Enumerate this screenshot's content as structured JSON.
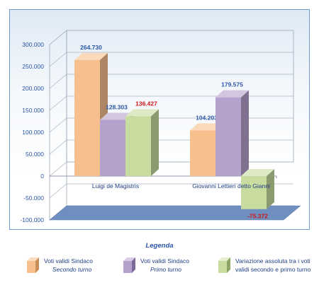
{
  "chart_data": {
    "type": "bar",
    "title": "",
    "xlabel": "",
    "ylabel": "",
    "ylim": [
      -100000,
      300000
    ],
    "yticks": [
      "300.000",
      "250.000",
      "200.000",
      "150.000",
      "100.000",
      "50.000",
      "0",
      "-50.000",
      "-100.000"
    ],
    "categories": [
      "Luigi de Magistris",
      "Giovanni Lettieri detto Gianni"
    ],
    "series": [
      {
        "name": "Voti validi Sindaco Secondo turno",
        "values": [
          264730,
          104203
        ],
        "labels": [
          "264.730",
          "104.203"
        ],
        "color": "#f8bf8e",
        "label_color": "#2b56a6"
      },
      {
        "name": "Voti validi Sindaco Primo turno",
        "values": [
          128303,
          179575
        ],
        "labels": [
          "128.303",
          "179.575"
        ],
        "color": "#b5a2cc",
        "label_color": "#2b56a6"
      },
      {
        "name": "Variazione assoluta tra i voti validi secondo e primo turno",
        "values": [
          136427,
          -75372
        ],
        "labels": [
          "136.427",
          "-75.372"
        ],
        "color": "#c8dc9f",
        "label_color": "#d01818"
      }
    ]
  },
  "legend": {
    "title": "Legenda",
    "items": [
      {
        "line1": "Voti validi Sindaco",
        "line2": "Secondo turno",
        "icon": "cube-icon",
        "color": "#f8bf8e"
      },
      {
        "line1": "Voti validi Sindaco",
        "line2": "Primo turno",
        "icon": "cube-icon",
        "color": "#b5a2cc"
      },
      {
        "line1": "Variazione assoluta tra i voti",
        "line2": "validi secondo e primo turno",
        "icon": "cube-icon",
        "color": "#c8dc9f"
      }
    ]
  }
}
